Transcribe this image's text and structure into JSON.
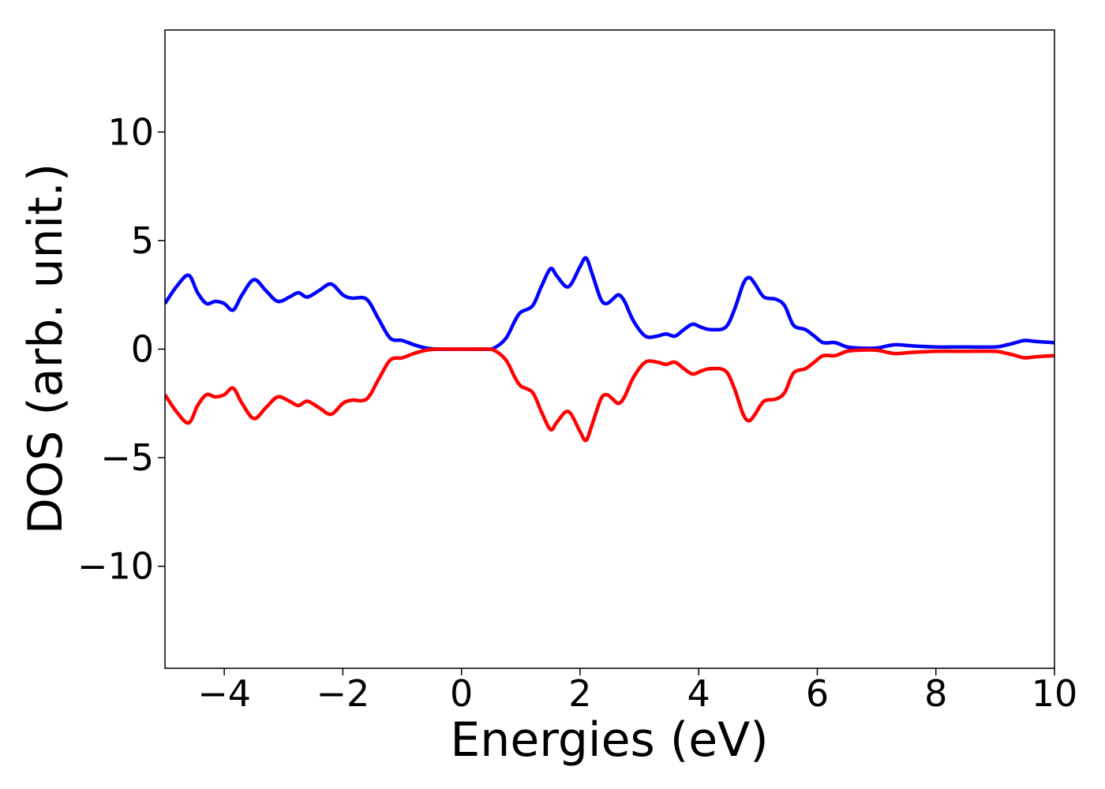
{
  "chart_data": {
    "type": "line",
    "title": "",
    "xlabel": "Energies (eV)",
    "ylabel": "DOS (arb. unit.)",
    "xlim": [
      -5,
      10
    ],
    "ylim": [
      -14.7,
      14.7
    ],
    "xticks": [
      -4,
      -2,
      0,
      2,
      4,
      6,
      8,
      10
    ],
    "xtick_labels": [
      "−4",
      "−2",
      "0",
      "2",
      "4",
      "6",
      "8",
      "10"
    ],
    "yticks": [
      -10,
      -5,
      0,
      5,
      10
    ],
    "ytick_labels": [
      "−10",
      "−5",
      "0",
      "5",
      "10"
    ],
    "grid": false,
    "legend": "none",
    "series": [
      {
        "color": "#0000ff",
        "x": [
          -5.0,
          -4.8,
          -4.6,
          -4.45,
          -4.3,
          -4.15,
          -4.0,
          -3.85,
          -3.7,
          -3.5,
          -3.3,
          -3.1,
          -2.9,
          -2.75,
          -2.6,
          -2.4,
          -2.2,
          -2.0,
          -1.85,
          -1.6,
          -1.4,
          -1.2,
          -1.0,
          -0.8,
          -0.6,
          -0.4,
          0.0,
          0.4,
          0.55,
          0.75,
          0.9,
          1.0,
          1.2,
          1.35,
          1.5,
          1.6,
          1.75,
          1.85,
          2.0,
          2.1,
          2.2,
          2.35,
          2.45,
          2.55,
          2.65,
          2.75,
          2.9,
          3.1,
          3.3,
          3.45,
          3.6,
          3.75,
          3.9,
          4.05,
          4.2,
          4.45,
          4.6,
          4.75,
          4.85,
          4.95,
          5.1,
          5.3,
          5.45,
          5.6,
          5.8,
          5.95,
          6.1,
          6.3,
          6.5,
          6.7,
          7.0,
          7.3,
          7.6,
          8.0,
          8.5,
          9.0,
          9.2,
          9.35,
          9.5,
          9.7,
          10.0
        ],
        "y": [
          2.1,
          2.9,
          3.4,
          2.6,
          2.1,
          2.2,
          2.1,
          1.8,
          2.5,
          3.2,
          2.7,
          2.2,
          2.4,
          2.6,
          2.4,
          2.7,
          3.0,
          2.5,
          2.35,
          2.3,
          1.4,
          0.5,
          0.4,
          0.2,
          0.05,
          0.0,
          0.0,
          0.0,
          0.05,
          0.5,
          1.3,
          1.7,
          2.0,
          2.9,
          3.7,
          3.4,
          2.9,
          3.0,
          3.8,
          4.2,
          3.5,
          2.3,
          2.1,
          2.3,
          2.5,
          2.2,
          1.3,
          0.6,
          0.6,
          0.7,
          0.6,
          0.9,
          1.15,
          1.0,
          0.9,
          1.0,
          1.8,
          3.0,
          3.3,
          3.0,
          2.4,
          2.3,
          2.0,
          1.1,
          0.9,
          0.6,
          0.3,
          0.3,
          0.1,
          0.05,
          0.05,
          0.2,
          0.15,
          0.1,
          0.1,
          0.1,
          0.2,
          0.3,
          0.4,
          0.35,
          0.3
        ]
      },
      {
        "color": "#ff0000",
        "x": [
          -5.0,
          -4.8,
          -4.6,
          -4.45,
          -4.3,
          -4.15,
          -4.0,
          -3.85,
          -3.7,
          -3.5,
          -3.3,
          -3.1,
          -2.9,
          -2.75,
          -2.6,
          -2.4,
          -2.2,
          -2.0,
          -1.85,
          -1.6,
          -1.4,
          -1.2,
          -1.0,
          -0.8,
          -0.6,
          -0.4,
          0.0,
          0.4,
          0.55,
          0.75,
          0.9,
          1.0,
          1.2,
          1.35,
          1.5,
          1.6,
          1.75,
          1.85,
          2.0,
          2.1,
          2.2,
          2.35,
          2.45,
          2.55,
          2.65,
          2.75,
          2.9,
          3.1,
          3.3,
          3.45,
          3.6,
          3.75,
          3.9,
          4.05,
          4.2,
          4.45,
          4.6,
          4.75,
          4.85,
          4.95,
          5.1,
          5.3,
          5.45,
          5.6,
          5.8,
          5.95,
          6.1,
          6.3,
          6.5,
          6.7,
          7.0,
          7.3,
          7.6,
          8.0,
          8.5,
          9.0,
          9.2,
          9.35,
          9.5,
          9.7,
          10.0
        ],
        "y": [
          -2.1,
          -2.9,
          -3.4,
          -2.6,
          -2.1,
          -2.2,
          -2.1,
          -1.8,
          -2.5,
          -3.2,
          -2.7,
          -2.2,
          -2.4,
          -2.6,
          -2.4,
          -2.7,
          -3.0,
          -2.5,
          -2.35,
          -2.3,
          -1.4,
          -0.5,
          -0.4,
          -0.2,
          -0.05,
          0.0,
          0.0,
          0.0,
          -0.05,
          -0.5,
          -1.3,
          -1.7,
          -2.0,
          -2.9,
          -3.7,
          -3.4,
          -2.9,
          -3.0,
          -3.8,
          -4.2,
          -3.5,
          -2.3,
          -2.1,
          -2.3,
          -2.5,
          -2.2,
          -1.3,
          -0.6,
          -0.6,
          -0.7,
          -0.6,
          -0.9,
          -1.15,
          -1.0,
          -0.9,
          -1.0,
          -1.8,
          -3.0,
          -3.3,
          -3.0,
          -2.4,
          -2.3,
          -2.0,
          -1.1,
          -0.9,
          -0.6,
          -0.3,
          -0.3,
          -0.1,
          -0.05,
          -0.05,
          -0.2,
          -0.15,
          -0.1,
          -0.1,
          -0.1,
          -0.2,
          -0.3,
          -0.4,
          -0.35,
          -0.3
        ]
      }
    ]
  }
}
